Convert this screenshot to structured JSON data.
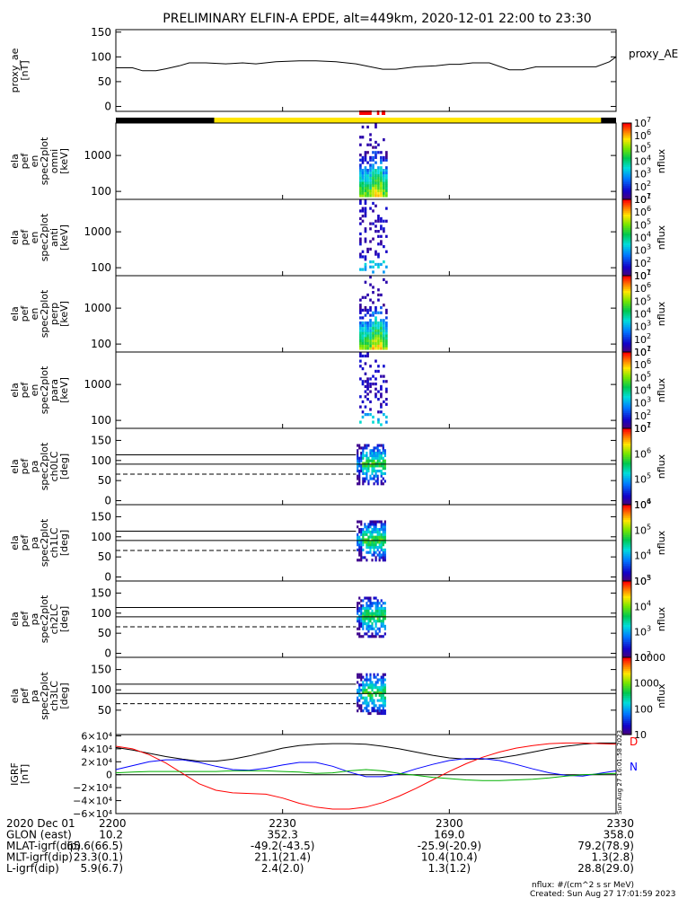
{
  "title": "PRELIMINARY ELFIN-A EPDE, alt=449km, 2020-12-01 22:00 to 23:30",
  "footer": {
    "units": "nflux: #/(cm^2 s sr MeV)",
    "created": "Created: Sun Aug 27 17:01:59 2023",
    "side_stamp": "Sun Aug 27 16:01:58 2023"
  },
  "time_axis": {
    "date_label": "2020 Dec 01",
    "ticks": [
      "2200",
      "2230",
      "2300",
      "2330"
    ],
    "tick_hours": [
      22.0,
      22.5,
      23.0,
      23.5
    ],
    "range_hours": [
      22.0,
      23.5
    ]
  },
  "ephemeris": [
    {
      "label": "GLON (east)",
      "values": [
        "10.2",
        "352.3",
        "169.0",
        "358.0"
      ]
    },
    {
      "label": "MLAT-igrf(dip)",
      "values": [
        "65.6(66.5)",
        "-49.2(-43.5)",
        "-25.9(-20.9)",
        "79.2(78.9)"
      ]
    },
    {
      "label": "MLT-igrf(dip)",
      "values": [
        "23.3(0.1)",
        "21.1(21.4)",
        "10.4(10.4)",
        "1.3(2.8)"
      ]
    },
    {
      "label": "L-igrf(dip)",
      "values": [
        "5.9(6.7)",
        "2.4(2.0)",
        "1.3(1.2)",
        "28.8(29.0)"
      ]
    }
  ],
  "status_bar": {
    "colors": {
      "night": "#000000",
      "day": "#ffe600",
      "science": "#ff0000"
    },
    "segments": [
      {
        "start": 22.0,
        "end": 22.295,
        "state": "night"
      },
      {
        "start": 22.295,
        "end": 23.455,
        "state": "day"
      },
      {
        "start": 23.455,
        "end": 23.5,
        "state": "night"
      }
    ],
    "science": [
      [
        22.73,
        22.767
      ],
      [
        22.783,
        22.79
      ],
      [
        22.797,
        22.808
      ]
    ]
  },
  "chart_data": [
    {
      "id": "proxy_ae",
      "type": "line",
      "ylabel": "proxy_ae\n[nT]",
      "legend": "proxy_AE",
      "ylim": [
        -10,
        155
      ],
      "yticks": [
        "0",
        "50",
        "100",
        "150"
      ],
      "ytick_values": [
        0,
        50,
        100,
        150
      ],
      "x": [
        22.0,
        22.05,
        22.08,
        22.12,
        22.15,
        22.19,
        22.22,
        22.27,
        22.33,
        22.38,
        22.42,
        22.48,
        22.55,
        22.6,
        22.66,
        22.72,
        22.8,
        22.84,
        22.9,
        22.96,
        23.0,
        23.03,
        23.07,
        23.12,
        23.18,
        23.22,
        23.26,
        23.33,
        23.38,
        23.44,
        23.48,
        23.5
      ],
      "y": [
        78,
        78,
        72,
        72,
        76,
        82,
        88,
        88,
        86,
        88,
        86,
        90,
        92,
        92,
        90,
        86,
        75,
        75,
        80,
        82,
        85,
        85,
        88,
        88,
        74,
        74,
        80,
        80,
        80,
        80,
        90,
        100
      ]
    },
    {
      "id": "en_omni",
      "type": "heatmap",
      "ylabel": "ela\npef\nen\nspec2plot\nomni\n[keV]",
      "ytick_labels": [
        "100",
        "1000"
      ],
      "ytick_values": [
        100,
        1000
      ],
      "log": true,
      "ylim": [
        60,
        8000
      ],
      "zlabel": "nflux",
      "zlim": [
        10,
        10000000
      ]
    },
    {
      "id": "en_anti",
      "type": "heatmap",
      "ylabel": "ela\npef\nen\nspec2plot\nanti\n[keV]",
      "ytick_labels": [
        "100",
        "1000"
      ],
      "ytick_values": [
        100,
        1000
      ],
      "log": true,
      "ylim": [
        60,
        8000
      ],
      "zlabel": "nflux",
      "zlim": [
        10,
        10000000
      ]
    },
    {
      "id": "en_perp",
      "type": "heatmap",
      "ylabel": "ela\npef\nen\nspec2plot\nperp\n[keV]",
      "ytick_labels": [
        "100",
        "1000"
      ],
      "ytick_values": [
        100,
        1000
      ],
      "log": true,
      "ylim": [
        60,
        8000
      ],
      "zlabel": "nflux",
      "zlim": [
        10,
        10000000
      ]
    },
    {
      "id": "en_para",
      "type": "heatmap",
      "ylabel": "ela\npef\nen\nspec2plot\npara\n[keV]",
      "ytick_labels": [
        "100",
        "1000"
      ],
      "ytick_values": [
        100,
        1000
      ],
      "log": true,
      "ylim": [
        60,
        8000
      ],
      "zlabel": "nflux",
      "zlim": [
        10,
        10000000
      ]
    },
    {
      "id": "pa_ch0",
      "type": "heatmap",
      "ylabel": "ela\npef\npa\nspec2plot\nch0LC\n[deg]",
      "ytick_labels": [
        "0",
        "50",
        "100",
        "150"
      ],
      "ytick_values": [
        0,
        50,
        100,
        150
      ],
      "ylim": [
        -10,
        180
      ],
      "zlabel": "nflux",
      "zlim": [
        10000,
        10000000
      ],
      "ref_lines": [
        114,
        91,
        66
      ]
    },
    {
      "id": "pa_ch1",
      "type": "heatmap",
      "ylabel": "ela\npef\npa\nspec2plot\nch1LC\n[deg]",
      "ytick_labels": [
        "0",
        "50",
        "100",
        "150"
      ],
      "ytick_values": [
        0,
        50,
        100,
        150
      ],
      "ylim": [
        -10,
        180
      ],
      "zlabel": "nflux",
      "zlim": [
        1000,
        1000000
      ],
      "ref_lines": [
        114,
        91,
        66
      ]
    },
    {
      "id": "pa_ch2",
      "type": "heatmap",
      "ylabel": "ela\npef\npa\nspec2plot\nch2LC\n[deg]",
      "ytick_labels": [
        "0",
        "50",
        "100",
        "150"
      ],
      "ytick_values": [
        0,
        50,
        100,
        150
      ],
      "ylim": [
        -10,
        180
      ],
      "zlabel": "nflux",
      "zlim": [
        100,
        100000
      ],
      "ref_lines": [
        114,
        91,
        66
      ]
    },
    {
      "id": "pa_ch3",
      "type": "heatmap",
      "ylabel": "ela\npef\npa\nspec2plot\nch3LC\n[deg]",
      "ytick_labels": [
        "50",
        "100",
        "150"
      ],
      "ytick_values": [
        50,
        100,
        150
      ],
      "ylim": [
        -10,
        180
      ],
      "zlabel": "nflux",
      "zlim": [
        10,
        10000
      ],
      "zticks": [
        "10",
        "100",
        "1000",
        "10000"
      ],
      "ref_lines": [
        114,
        91,
        66
      ]
    },
    {
      "id": "igrf",
      "type": "line",
      "ylabel": "IGRF\n[nT]",
      "ylim": [
        -60000,
        62000
      ],
      "ytick_labels": [
        "6×10⁴",
        "4×10⁴",
        "2×10⁴",
        "0",
        "−2×10⁴",
        "−4×10⁴",
        "−6×10⁴"
      ],
      "ytick_values": [
        60000,
        40000,
        20000,
        0,
        -20000,
        -40000,
        -60000
      ],
      "legend": [
        "D",
        "N"
      ],
      "x": [
        22.0,
        22.05,
        22.1,
        22.15,
        22.2,
        22.25,
        22.3,
        22.35,
        22.4,
        22.45,
        22.5,
        22.55,
        22.6,
        22.65,
        22.7,
        22.75,
        22.8,
        22.85,
        22.9,
        22.95,
        23.0,
        23.05,
        23.1,
        23.15,
        23.2,
        23.25,
        23.3,
        23.35,
        23.4,
        23.45,
        23.5
      ],
      "series": [
        {
          "color": "#000000",
          "values": [
            42000,
            38000,
            33000,
            28000,
            24000,
            21000,
            21000,
            24000,
            29000,
            35000,
            41000,
            45000,
            47000,
            48000,
            48000,
            47000,
            44000,
            40000,
            35000,
            30000,
            26000,
            24000,
            24000,
            26000,
            30000,
            35000,
            40000,
            44000,
            47000,
            49000,
            49000
          ]
        },
        {
          "color": "#ff0000",
          "values": [
            44000,
            40000,
            31000,
            18000,
            2000,
            -14000,
            -24000,
            -28000,
            -29000,
            -30000,
            -36000,
            -44000,
            -50000,
            -53000,
            -53000,
            -50000,
            -43000,
            -33000,
            -21000,
            -8000,
            5000,
            17000,
            27000,
            35000,
            41000,
            45000,
            48000,
            49000,
            49000,
            48000,
            47000
          ]
        },
        {
          "color": "#0000ff",
          "values": [
            8000,
            14000,
            20000,
            23000,
            23000,
            19000,
            13000,
            8000,
            7000,
            10000,
            15000,
            19000,
            19000,
            13000,
            4000,
            -3000,
            -3000,
            1000,
            9000,
            16000,
            22000,
            25000,
            25000,
            22000,
            16000,
            9000,
            3000,
            -1000,
            -2000,
            2000,
            6000
          ]
        },
        {
          "color": "#00b000",
          "values": [
            3000,
            4000,
            5000,
            5000,
            5000,
            5000,
            5000,
            6000,
            6000,
            6000,
            5000,
            4000,
            2000,
            3000,
            6000,
            8000,
            6000,
            2000,
            -1000,
            -4000,
            -6000,
            -8000,
            -9000,
            -9000,
            -8000,
            -7000,
            -5000,
            -2000,
            0,
            1000,
            2000
          ]
        }
      ]
    }
  ]
}
